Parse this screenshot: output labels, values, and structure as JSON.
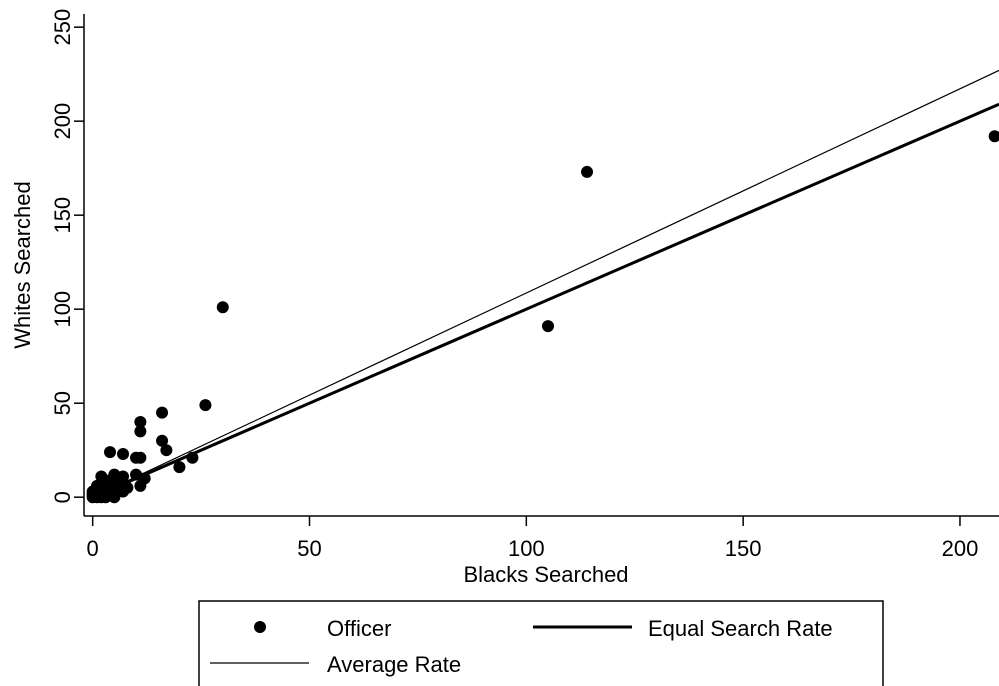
{
  "chart_data": {
    "type": "scatter",
    "title": "",
    "xlabel": "Blacks Searched",
    "ylabel": "Whites Searched",
    "xlim": [
      -2,
      209
    ],
    "ylim": [
      -10,
      257
    ],
    "x_ticks": [
      0,
      50,
      100,
      150,
      200
    ],
    "y_ticks": [
      0,
      50,
      100,
      150,
      200,
      250
    ],
    "grid": false,
    "legend": {
      "placement": "bottom",
      "entries": [
        "Officer",
        "Equal Search Rate",
        "Average Rate"
      ]
    },
    "series": [
      {
        "name": "Officer",
        "type": "scatter",
        "color": "#000000",
        "points": [
          [
            0,
            0
          ],
          [
            0,
            1
          ],
          [
            0,
            2
          ],
          [
            0,
            3
          ],
          [
            1,
            0
          ],
          [
            1,
            1
          ],
          [
            1,
            2
          ],
          [
            1,
            4
          ],
          [
            1,
            6
          ],
          [
            2,
            0
          ],
          [
            2,
            2
          ],
          [
            2,
            3
          ],
          [
            2,
            5
          ],
          [
            2,
            11
          ],
          [
            3,
            0
          ],
          [
            3,
            1
          ],
          [
            3,
            4
          ],
          [
            3,
            7
          ],
          [
            4,
            2
          ],
          [
            4,
            5
          ],
          [
            4,
            9
          ],
          [
            4,
            24
          ],
          [
            5,
            0
          ],
          [
            5,
            3
          ],
          [
            5,
            6
          ],
          [
            5,
            12
          ],
          [
            6,
            4
          ],
          [
            6,
            8
          ],
          [
            7,
            3
          ],
          [
            7,
            11
          ],
          [
            7,
            23
          ],
          [
            8,
            5
          ],
          [
            10,
            12
          ],
          [
            10,
            21
          ],
          [
            11,
            6
          ],
          [
            11,
            21
          ],
          [
            11,
            35
          ],
          [
            11,
            40
          ],
          [
            12,
            10
          ],
          [
            16,
            30
          ],
          [
            16,
            45
          ],
          [
            17,
            25
          ],
          [
            20,
            16
          ],
          [
            23,
            21
          ],
          [
            26,
            49
          ],
          [
            30,
            101
          ],
          [
            105,
            91
          ],
          [
            114,
            173
          ],
          [
            208,
            192
          ]
        ]
      },
      {
        "name": "Equal Search Rate",
        "type": "line",
        "color": "#000000",
        "points": [
          [
            0,
            0
          ],
          [
            209,
            209
          ]
        ]
      },
      {
        "name": "Average Rate",
        "type": "line",
        "color": "#000000",
        "points": [
          [
            0,
            0
          ],
          [
            209,
            227
          ]
        ]
      }
    ]
  }
}
